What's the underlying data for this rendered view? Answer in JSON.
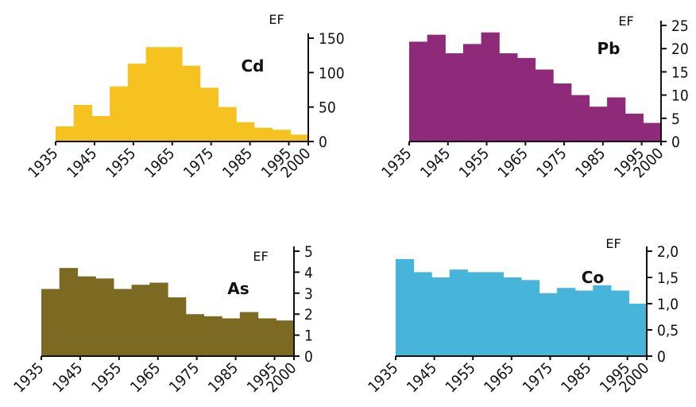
{
  "chart_data": [
    {
      "type": "bar",
      "element": "Cd",
      "ylabel": "EF",
      "color": "#F5C21F",
      "x_ticks": [
        "1935",
        "1945",
        "1955",
        "1965",
        "1975",
        "1985",
        "1995",
        "2000"
      ],
      "y_ticks": [
        "0",
        "50",
        "100",
        "150"
      ],
      "ylim": [
        0,
        150
      ],
      "x_start": 1935,
      "x_end": 2000,
      "values": [
        22,
        53,
        37,
        80,
        113,
        137,
        137,
        110,
        78,
        50,
        28,
        20,
        17,
        10
      ]
    },
    {
      "type": "bar",
      "element": "Pb",
      "ylabel": "EF",
      "color": "#8E2A79",
      "x_ticks": [
        "1935",
        "1945",
        "1955",
        "1965",
        "1975",
        "1985",
        "1995",
        "2000"
      ],
      "y_ticks": [
        "0",
        "5",
        "10",
        "15",
        "20",
        "25"
      ],
      "ylim": [
        0,
        25
      ],
      "x_start": 1935,
      "x_end": 2000,
      "values": [
        21.5,
        23,
        19,
        21,
        23.5,
        19,
        18,
        15.5,
        12.5,
        10,
        7.5,
        9.5,
        6,
        4
      ]
    },
    {
      "type": "bar",
      "element": "As",
      "ylabel": "EF",
      "color": "#7D6A22",
      "x_ticks": [
        "1935",
        "1945",
        "1955",
        "1965",
        "1975",
        "1985",
        "1995",
        "2000"
      ],
      "y_ticks": [
        "0",
        "1",
        "2",
        "3",
        "4",
        "5"
      ],
      "ylim": [
        0,
        5
      ],
      "x_start": 1935,
      "x_end": 2000,
      "values": [
        3.2,
        4.2,
        3.8,
        3.7,
        3.2,
        3.4,
        3.5,
        2.8,
        2.0,
        1.9,
        1.8,
        2.1,
        1.8,
        1.7
      ]
    },
    {
      "type": "bar",
      "element": "Co",
      "ylabel": "EF",
      "color": "#47B4DA",
      "x_ticks": [
        "1935",
        "1945",
        "1955",
        "1965",
        "1975",
        "1985",
        "1995",
        "2000"
      ],
      "y_ticks": [
        "0",
        "0,5",
        "1,0",
        "1,5",
        "2,0"
      ],
      "ylim": [
        0,
        2
      ],
      "x_start": 1935,
      "x_end": 2000,
      "values": [
        1.85,
        1.6,
        1.5,
        1.65,
        1.6,
        1.6,
        1.5,
        1.45,
        1.2,
        1.3,
        1.25,
        1.35,
        1.25,
        1.0
      ]
    }
  ]
}
